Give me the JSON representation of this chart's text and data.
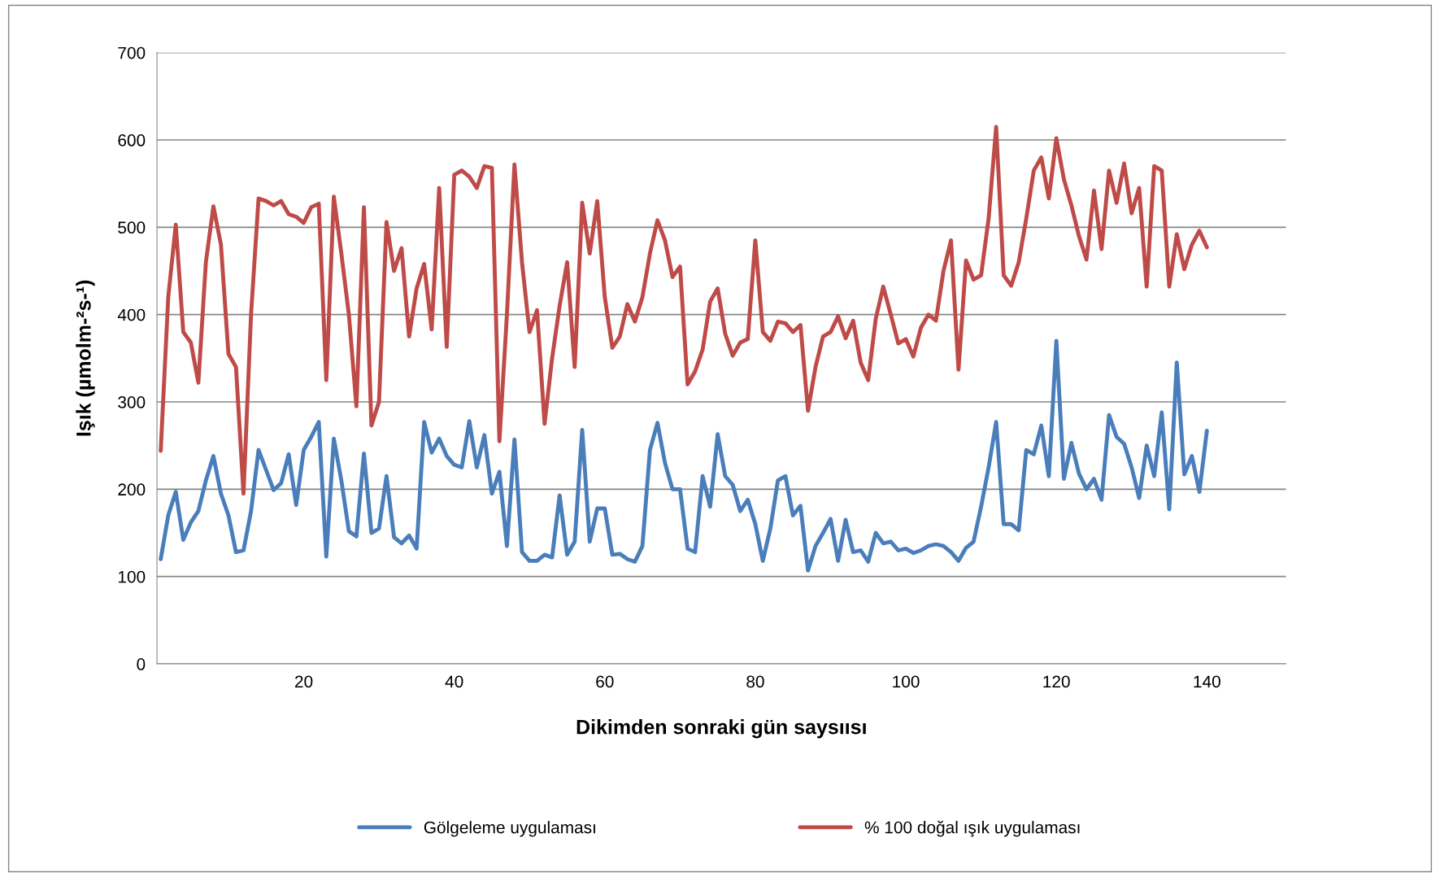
{
  "chart_data": {
    "type": "line",
    "xlabel": "Dikimden sonraki gün saysıısı",
    "ylabel": "Işık (µmolm-²s-¹)",
    "x": [
      1,
      2,
      3,
      4,
      5,
      6,
      7,
      8,
      9,
      10,
      11,
      12,
      13,
      14,
      15,
      16,
      17,
      18,
      19,
      20,
      21,
      22,
      23,
      24,
      25,
      26,
      27,
      28,
      29,
      30,
      31,
      32,
      33,
      34,
      35,
      36,
      37,
      38,
      39,
      40,
      41,
      42,
      43,
      44,
      45,
      46,
      47,
      48,
      49,
      50,
      51,
      52,
      53,
      54,
      55,
      56,
      57,
      58,
      59,
      60,
      61,
      62,
      63,
      64,
      65,
      66,
      67,
      68,
      69,
      70,
      71,
      72,
      73,
      74,
      75,
      76,
      77,
      78,
      79,
      80,
      81,
      82,
      83,
      84,
      85,
      86,
      87,
      88,
      89,
      90,
      91,
      92,
      93,
      94,
      95,
      96,
      97,
      98,
      99,
      100,
      101,
      102,
      103,
      104,
      105,
      106,
      107,
      108,
      109,
      110,
      111,
      112,
      113,
      114,
      115,
      116,
      117,
      118,
      119,
      120,
      121,
      122,
      123,
      124,
      125,
      126,
      127,
      128,
      129,
      130,
      131,
      132,
      133,
      134,
      135,
      136,
      137,
      138,
      139,
      140
    ],
    "series": [
      {
        "name": "Gölgeleme uygulaması",
        "color": "#4a7ebb",
        "values": [
          120,
          170,
          197,
          142,
          162,
          175,
          210,
          238,
          195,
          170,
          128,
          130,
          175,
          245,
          222,
          199,
          207,
          240,
          182,
          245,
          260,
          277,
          123,
          258,
          210,
          152,
          146,
          241,
          150,
          155,
          215,
          145,
          138,
          147,
          132,
          277,
          242,
          258,
          238,
          228,
          225,
          278,
          225,
          262,
          195,
          220,
          135,
          257,
          128,
          118,
          118,
          125,
          122,
          193,
          125,
          140,
          268,
          140,
          178,
          178,
          125,
          126,
          120,
          117,
          135,
          245,
          276,
          230,
          200,
          200,
          132,
          128,
          215,
          180,
          263,
          215,
          205,
          175,
          188,
          160,
          118,
          155,
          210,
          215,
          170,
          181,
          107,
          135,
          150,
          166,
          118,
          165,
          128,
          130,
          117,
          150,
          138,
          140,
          130,
          132,
          127,
          130,
          135,
          137,
          135,
          128,
          118,
          133,
          140,
          180,
          225,
          277,
          160,
          160,
          153,
          245,
          240,
          273,
          215,
          370,
          212,
          253,
          218,
          200,
          212,
          188,
          285,
          260,
          252,
          225,
          190,
          250,
          215,
          288,
          177,
          345,
          217,
          238,
          197,
          267
        ]
      },
      {
        "name": "% 100 doğal ışık uygulaması",
        "color": "#be4b48",
        "values": [
          244,
          420,
          503,
          380,
          368,
          322,
          460,
          524,
          480,
          355,
          340,
          195,
          400,
          533,
          530,
          525,
          530,
          515,
          512,
          505,
          523,
          527,
          325,
          535,
          470,
          400,
          295,
          523,
          273,
          300,
          506,
          450,
          476,
          375,
          430,
          458,
          383,
          545,
          363,
          560,
          565,
          558,
          545,
          570,
          568,
          255,
          400,
          572,
          460,
          380,
          405,
          275,
          350,
          410,
          460,
          340,
          528,
          470,
          530,
          420,
          362,
          375,
          412,
          392,
          420,
          470,
          508,
          485,
          443,
          455,
          320,
          335,
          360,
          415,
          430,
          378,
          353,
          368,
          372,
          485,
          380,
          370,
          392,
          390,
          380,
          388,
          290,
          340,
          375,
          380,
          398,
          373,
          393,
          345,
          325,
          395,
          432,
          400,
          367,
          372,
          352,
          385,
          400,
          393,
          450,
          485,
          337,
          462,
          440,
          445,
          510,
          615,
          445,
          433,
          460,
          510,
          565,
          580,
          533,
          602,
          555,
          525,
          490,
          463,
          542,
          475,
          565,
          528,
          573,
          516,
          545,
          432,
          570,
          565,
          432,
          492,
          452,
          480,
          496,
          477
        ]
      }
    ],
    "xlim": [
      0.5,
      150.5
    ],
    "xticks": [
      20,
      40,
      60,
      80,
      100,
      120,
      140
    ],
    "ylim": [
      0,
      700
    ],
    "yticks": [
      0,
      100,
      200,
      300,
      400,
      500,
      600,
      700
    ],
    "grid": "y",
    "legend": "bottom",
    "marker": "none",
    "line_style": "solid"
  }
}
